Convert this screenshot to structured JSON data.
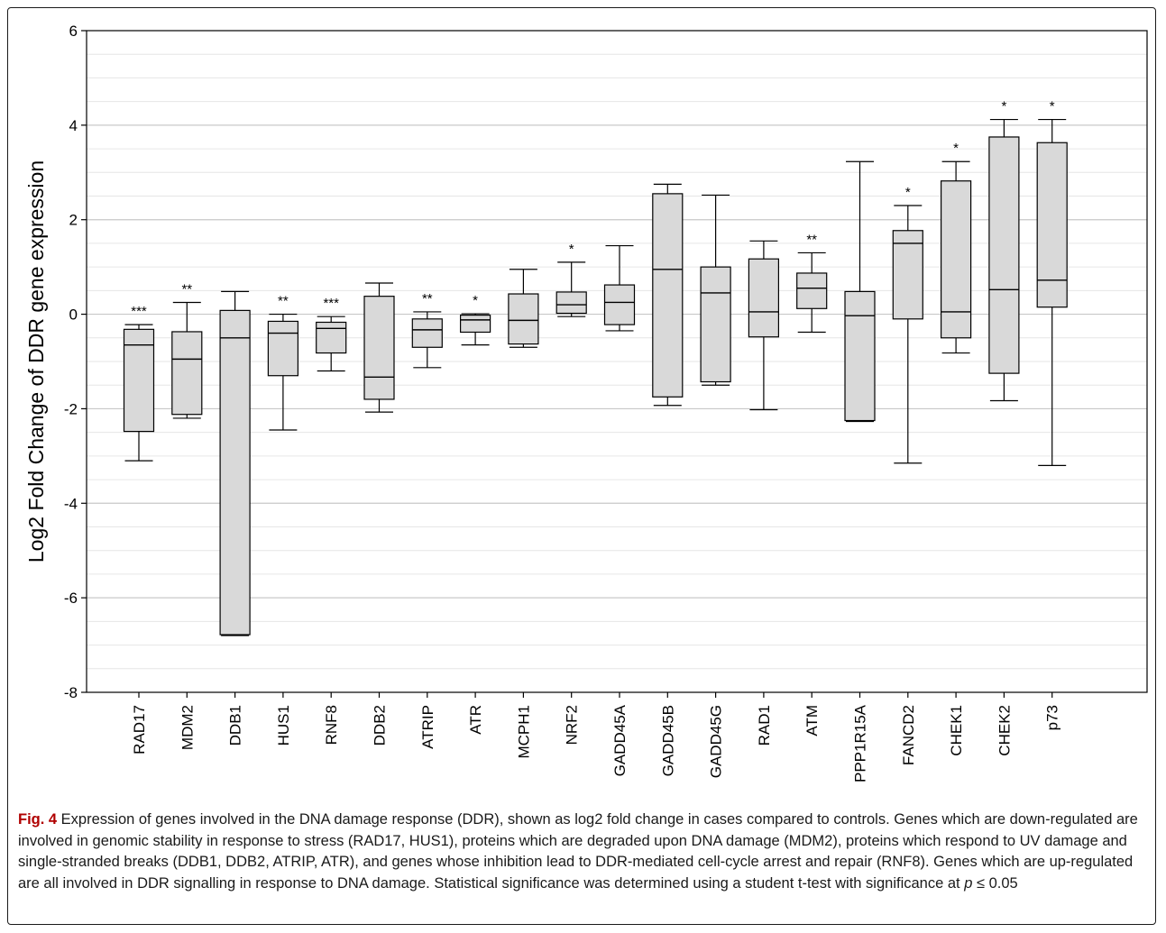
{
  "chart_data": {
    "type": "box",
    "title": "",
    "xlabel": "",
    "ylabel": "Log2 Fold Change of DDR gene expression",
    "ylim": [
      -8,
      6
    ],
    "yticks": [
      "6",
      "4",
      "2",
      "0",
      "-2",
      "-4",
      "-6",
      "-8"
    ],
    "yticks_values": [
      6,
      4,
      2,
      0,
      -2,
      -4,
      -6,
      -8
    ],
    "grid": "horizontal",
    "box_color": "#d9d9d9",
    "categories": [
      "RAD17",
      "MDM2",
      "DDB1",
      "HUS1",
      "RNF8",
      "DDB2",
      "ATRIP",
      "ATR",
      "MCPH1",
      "NRF2",
      "GADD45A",
      "GADD45B",
      "GADD45G",
      "RAD1",
      "ATM",
      "PPP1R15A",
      "FANCD2",
      "CHEK1",
      "CHEK2",
      "p73"
    ],
    "boxes": [
      {
        "gene": "RAD17",
        "whisker_low": -3.1,
        "q1": -2.48,
        "median": -0.65,
        "q3": -0.32,
        "whisker_high": -0.22,
        "sig": "***"
      },
      {
        "gene": "MDM2",
        "whisker_low": -2.2,
        "q1": -2.12,
        "median": -0.95,
        "q3": -0.37,
        "whisker_high": 0.25,
        "sig": "**"
      },
      {
        "gene": "DDB1",
        "whisker_low": -6.8,
        "q1": -6.78,
        "median": -0.5,
        "q3": 0.08,
        "whisker_high": 0.48,
        "sig": ""
      },
      {
        "gene": "HUS1",
        "whisker_low": -2.45,
        "q1": -1.3,
        "median": -0.4,
        "q3": -0.15,
        "whisker_high": 0.0,
        "sig": "**"
      },
      {
        "gene": "RNF8",
        "whisker_low": -1.2,
        "q1": -0.82,
        "median": -0.3,
        "q3": -0.17,
        "whisker_high": -0.05,
        "sig": "***"
      },
      {
        "gene": "DDB2",
        "whisker_low": -2.07,
        "q1": -1.8,
        "median": -1.33,
        "q3": 0.38,
        "whisker_high": 0.66,
        "sig": ""
      },
      {
        "gene": "ATRIP",
        "whisker_low": -1.13,
        "q1": -0.7,
        "median": -0.33,
        "q3": -0.1,
        "whisker_high": 0.05,
        "sig": "**"
      },
      {
        "gene": "ATR",
        "whisker_low": -0.65,
        "q1": -0.38,
        "median": -0.12,
        "q3": -0.02,
        "whisker_high": 0.01,
        "sig": "*"
      },
      {
        "gene": "MCPH1",
        "whisker_low": -0.7,
        "q1": -0.63,
        "median": -0.13,
        "q3": 0.43,
        "whisker_high": 0.95,
        "sig": ""
      },
      {
        "gene": "NRF2",
        "whisker_low": -0.05,
        "q1": 0.02,
        "median": 0.2,
        "q3": 0.47,
        "whisker_high": 1.1,
        "sig": "*"
      },
      {
        "gene": "GADD45A",
        "whisker_low": -0.35,
        "q1": -0.22,
        "median": 0.25,
        "q3": 0.62,
        "whisker_high": 1.45,
        "sig": ""
      },
      {
        "gene": "GADD45B",
        "whisker_low": -1.93,
        "q1": -1.75,
        "median": 0.95,
        "q3": 2.55,
        "whisker_high": 2.75,
        "sig": ""
      },
      {
        "gene": "GADD45G",
        "whisker_low": -1.5,
        "q1": -1.43,
        "median": 0.45,
        "q3": 1.0,
        "whisker_high": 2.52,
        "sig": ""
      },
      {
        "gene": "RAD1",
        "whisker_low": -2.02,
        "q1": -0.48,
        "median": 0.05,
        "q3": 1.17,
        "whisker_high": 1.55,
        "sig": ""
      },
      {
        "gene": "ATM",
        "whisker_low": -0.38,
        "q1": 0.12,
        "median": 0.55,
        "q3": 0.87,
        "whisker_high": 1.3,
        "sig": "**"
      },
      {
        "gene": "PPP1R15A",
        "whisker_low": -2.27,
        "q1": -2.25,
        "median": -0.03,
        "q3": 0.48,
        "whisker_high": 3.23,
        "sig": ""
      },
      {
        "gene": "FANCD2",
        "whisker_low": -3.15,
        "q1": -0.1,
        "median": 1.5,
        "q3": 1.77,
        "whisker_high": 2.3,
        "sig": "*"
      },
      {
        "gene": "CHEK1",
        "whisker_low": -0.82,
        "q1": -0.5,
        "median": 0.05,
        "q3": 2.82,
        "whisker_high": 3.23,
        "sig": "*"
      },
      {
        "gene": "CHEK2",
        "whisker_low": -1.83,
        "q1": -1.25,
        "median": 0.52,
        "q3": 3.75,
        "whisker_high": 4.12,
        "sig": "*"
      },
      {
        "gene": "p73",
        "whisker_low": -3.2,
        "q1": 0.15,
        "median": 0.72,
        "q3": 3.63,
        "whisker_high": 4.12,
        "sig": "*"
      }
    ]
  },
  "caption": {
    "label": "Fig. 4",
    "text_before_p": " Expression of genes involved in the DNA damage response (DDR), shown as log2 fold change in cases compared to controls. Genes which are down-regulated are involved in genomic stability in response to stress (RAD17, HUS1), proteins which are degraded upon DNA damage (MDM2), proteins which respond to UV damage and single-stranded breaks (DDB1, DDB2, ATRIP, ATR), and genes whose inhibition lead to DDR-mediated cell-cycle arrest and repair (RNF8). Genes which are up-regulated are all involved in DDR signalling in response to DNA damage. Statistical significance was determined using a student t-test with significance at ",
    "p_symbol": "p",
    "text_after_p": " ≤ 0.05"
  }
}
